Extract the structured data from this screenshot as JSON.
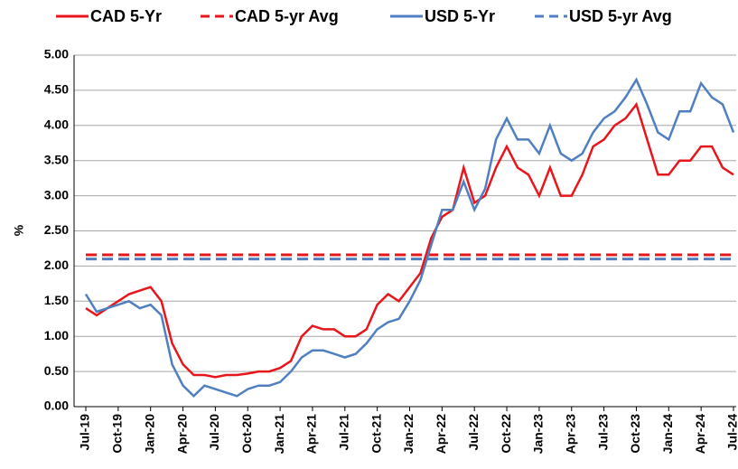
{
  "chart_data": {
    "type": "line",
    "categories": [
      "Jul-19",
      null,
      null,
      "Oct-19",
      null,
      null,
      "Jan-20",
      null,
      null,
      "Apr-20",
      null,
      null,
      "Jul-20",
      null,
      null,
      "Oct-20",
      null,
      null,
      "Jan-21",
      null,
      null,
      "Apr-21",
      null,
      null,
      "Jul-21",
      null,
      null,
      "Oct-21",
      null,
      null,
      "Jan-22",
      null,
      null,
      "Apr-22",
      null,
      null,
      "Jul-22",
      null,
      null,
      "Oct-22",
      null,
      null,
      "Jan-23",
      null,
      null,
      "Apr-23",
      null,
      null,
      "Jul-23",
      null,
      null,
      "Oct-23",
      null,
      null,
      "Jan-24",
      null,
      null,
      "Apr-24",
      null,
      null,
      "Jul-24"
    ],
    "series": [
      {
        "name": "CAD 5-Yr",
        "color": "#e8151b",
        "dash": false,
        "values": [
          1.4,
          1.3,
          1.4,
          1.5,
          1.6,
          1.65,
          1.7,
          1.5,
          0.9,
          0.6,
          0.45,
          0.45,
          0.42,
          0.45,
          0.45,
          0.47,
          0.5,
          0.5,
          0.55,
          0.65,
          1.0,
          1.15,
          1.1,
          1.1,
          1.0,
          1.0,
          1.1,
          1.45,
          1.6,
          1.5,
          1.7,
          1.9,
          2.4,
          2.7,
          2.8,
          3.4,
          2.9,
          3.0,
          3.4,
          3.7,
          3.4,
          3.3,
          3.0,
          3.4,
          3.0,
          3.0,
          3.3,
          3.7,
          3.8,
          4.0,
          4.1,
          4.3,
          3.8,
          3.3,
          3.3,
          3.5,
          3.5,
          3.7,
          3.7,
          3.4,
          3.3
        ]
      },
      {
        "name": "CAD 5-yr Avg",
        "color": "#e8151b",
        "dash": true,
        "values": [
          2.16,
          2.16,
          2.16,
          2.16,
          2.16,
          2.16,
          2.16,
          2.16,
          2.16,
          2.16,
          2.16,
          2.16,
          2.16,
          2.16,
          2.16,
          2.16,
          2.16,
          2.16,
          2.16,
          2.16,
          2.16,
          2.16,
          2.16,
          2.16,
          2.16,
          2.16,
          2.16,
          2.16,
          2.16,
          2.16,
          2.16,
          2.16,
          2.16,
          2.16,
          2.16,
          2.16,
          2.16,
          2.16,
          2.16,
          2.16,
          2.16,
          2.16,
          2.16,
          2.16,
          2.16,
          2.16,
          2.16,
          2.16,
          2.16,
          2.16,
          2.16,
          2.16,
          2.16,
          2.16,
          2.16,
          2.16,
          2.16,
          2.16,
          2.16,
          2.16,
          2.16
        ]
      },
      {
        "name": "USD 5-Yr",
        "color": "#4f7fc0",
        "dash": false,
        "values": [
          1.6,
          1.35,
          1.4,
          1.45,
          1.5,
          1.4,
          1.45,
          1.3,
          0.6,
          0.3,
          0.15,
          0.3,
          0.25,
          0.2,
          0.15,
          0.25,
          0.3,
          0.3,
          0.35,
          0.5,
          0.7,
          0.8,
          0.8,
          0.75,
          0.7,
          0.75,
          0.9,
          1.1,
          1.2,
          1.25,
          1.5,
          1.8,
          2.3,
          2.8,
          2.8,
          3.2,
          2.8,
          3.1,
          3.8,
          4.1,
          3.8,
          3.8,
          3.6,
          4.0,
          3.6,
          3.5,
          3.6,
          3.9,
          4.1,
          4.2,
          4.4,
          4.65,
          4.3,
          3.9,
          3.8,
          4.2,
          4.2,
          4.6,
          4.4,
          4.3,
          3.9
        ]
      },
      {
        "name": "USD 5-yr Avg",
        "color": "#4f7fc0",
        "dash": true,
        "values": [
          2.1,
          2.1,
          2.1,
          2.1,
          2.1,
          2.1,
          2.1,
          2.1,
          2.1,
          2.1,
          2.1,
          2.1,
          2.1,
          2.1,
          2.1,
          2.1,
          2.1,
          2.1,
          2.1,
          2.1,
          2.1,
          2.1,
          2.1,
          2.1,
          2.1,
          2.1,
          2.1,
          2.1,
          2.1,
          2.1,
          2.1,
          2.1,
          2.1,
          2.1,
          2.1,
          2.1,
          2.1,
          2.1,
          2.1,
          2.1,
          2.1,
          2.1,
          2.1,
          2.1,
          2.1,
          2.1,
          2.1,
          2.1,
          2.1,
          2.1,
          2.1,
          2.1,
          2.1,
          2.1,
          2.1,
          2.1,
          2.1,
          2.1,
          2.1,
          2.1,
          2.1
        ]
      }
    ],
    "ylabel": "%",
    "ylim": [
      0,
      5
    ],
    "yticks": [
      {
        "value": 0,
        "label": "0.00"
      },
      {
        "value": 0.5,
        "label": "0.50"
      },
      {
        "value": 1,
        "label": "1.00"
      },
      {
        "value": 1.5,
        "label": "1.50"
      },
      {
        "value": 2,
        "label": "2.00"
      },
      {
        "value": 2.5,
        "label": "2.50"
      },
      {
        "value": 3,
        "label": "3.00"
      },
      {
        "value": 3.5,
        "label": "3.50"
      },
      {
        "value": 4,
        "label": "4.00"
      },
      {
        "value": 4.5,
        "label": "4.50"
      },
      {
        "value": 5,
        "label": "5.00"
      }
    ],
    "grid": true,
    "legend": "top"
  }
}
